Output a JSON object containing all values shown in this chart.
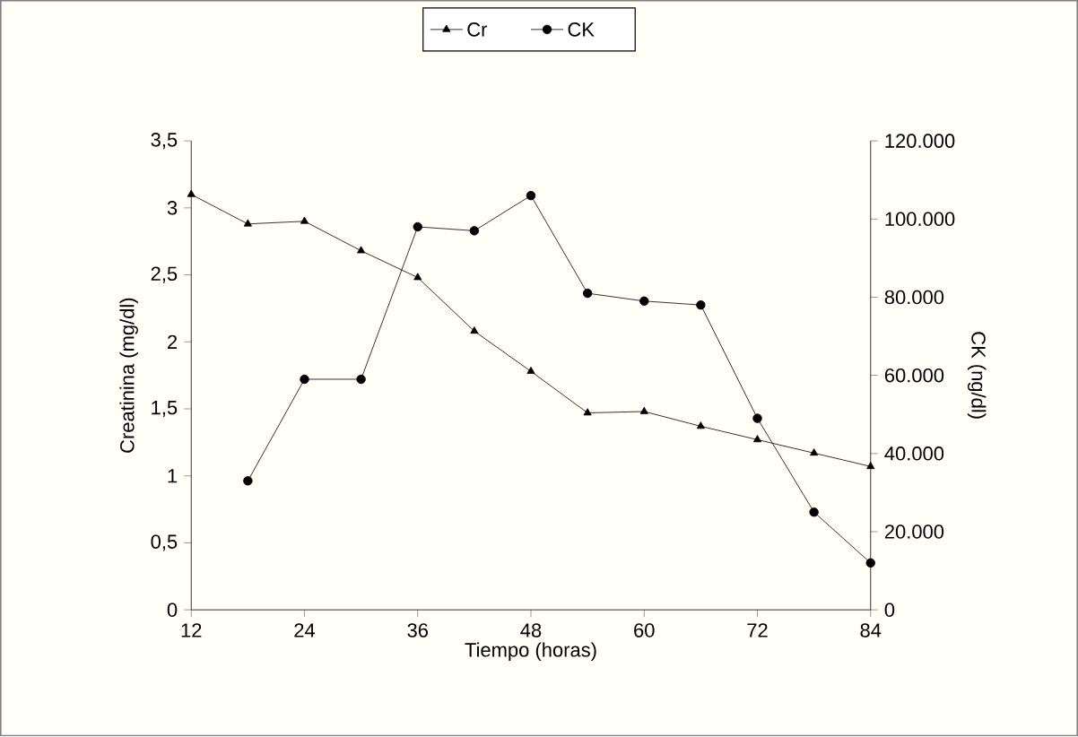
{
  "chart_data": {
    "type": "line",
    "xlabel": "Tiempo (horas)",
    "ylabel": "Creatinina (mg/dl)",
    "y2label": "CK (ng/dl)",
    "x": [
      12,
      18,
      24,
      30,
      36,
      42,
      48,
      54,
      60,
      66,
      72,
      78,
      84
    ],
    "series": [
      {
        "name": "Cr",
        "color": "#000000",
        "marker": "triangle",
        "values": [
          3.1,
          2.88,
          2.9,
          2.68,
          2.48,
          2.08,
          1.78,
          1.47,
          1.48,
          1.37,
          1.27,
          1.17,
          1.07
        ]
      },
      {
        "name": "CK",
        "color": "#000000",
        "marker": "circle",
        "axis": "y2",
        "values": [
          null,
          33000,
          59000,
          59000,
          98000,
          97000,
          106000,
          81000,
          79000,
          78000,
          49000,
          25000,
          12000
        ]
      }
    ],
    "xlim": [
      12,
      84
    ],
    "xticks": [
      12,
      24,
      36,
      48,
      60,
      72,
      84
    ],
    "ylim": [
      0,
      3.5
    ],
    "yticks": [
      0,
      {
        "value": 0.5,
        "label": "0,5"
      },
      1,
      {
        "value": 1.5,
        "label": "1,5"
      },
      2,
      {
        "value": 2.5,
        "label": "2,5"
      },
      3,
      {
        "value": 3.5,
        "label": "3,5"
      }
    ],
    "y2lim": [
      0,
      120000
    ],
    "y2ticks": [
      0,
      {
        "value": 20000,
        "label": "20.000"
      },
      {
        "value": 40000,
        "label": "40.000"
      },
      {
        "value": 60000,
        "label": "60.000"
      },
      {
        "value": 80000,
        "label": "80.000"
      },
      {
        "value": 100000,
        "label": "100.000"
      },
      {
        "value": 120000,
        "label": "120.000"
      }
    ],
    "legend": "top",
    "grid": false,
    "line_style": "solid"
  }
}
